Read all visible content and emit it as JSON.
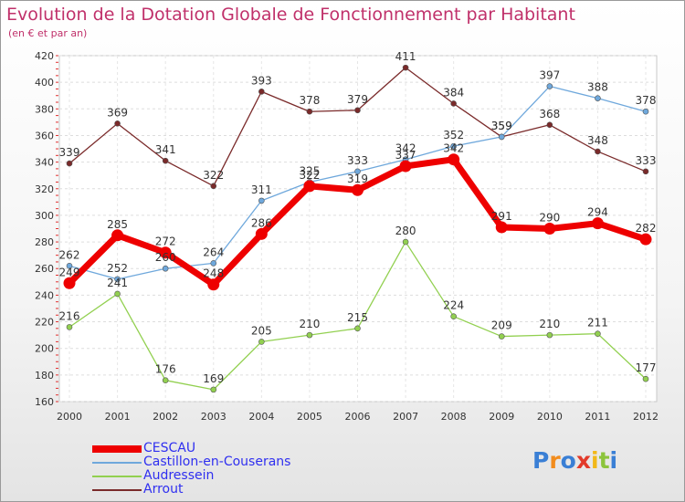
{
  "header": {
    "title": "Evolution de la Dotation Globale de Fonctionnement par Habitant",
    "subtitle": "(en € et par an)"
  },
  "logo": {
    "letters": [
      "P",
      "r",
      "o",
      "x",
      "i",
      "t",
      "i"
    ],
    "colors": [
      "#3a7fd5",
      "#f28c1c",
      "#3a7fd5",
      "#e23a2a",
      "#f2b818",
      "#8cc43c",
      "#3a7fd5"
    ]
  },
  "chart_data": {
    "type": "line",
    "x": [
      "2000",
      "2001",
      "2002",
      "2003",
      "2004",
      "2005",
      "2006",
      "2007",
      "2008",
      "2009",
      "2010",
      "2011",
      "2012"
    ],
    "ylim": [
      160,
      420
    ],
    "yticks": [
      160,
      180,
      200,
      220,
      240,
      260,
      280,
      300,
      320,
      340,
      360,
      380,
      400,
      420
    ],
    "grid": true,
    "legend_position": "bottom-left",
    "series": [
      {
        "name": "Arrout",
        "color": "#7a2a2a",
        "thick": false,
        "values": [
          339,
          369,
          341,
          322,
          393,
          378,
          379,
          411,
          384,
          359,
          368,
          348,
          333
        ]
      },
      {
        "name": "Audressein",
        "color": "#92d050",
        "thick": false,
        "values": [
          216,
          241,
          176,
          169,
          205,
          210,
          215,
          280,
          224,
          209,
          210,
          211,
          177
        ]
      },
      {
        "name": "Castillon-en-Couserans",
        "color": "#6fa8dc",
        "thick": false,
        "values": [
          262,
          252,
          260,
          264,
          311,
          325,
          333,
          342,
          352,
          359,
          397,
          388,
          378
        ]
      },
      {
        "name": "CESCAU",
        "color": "#ee0000",
        "thick": true,
        "values": [
          249,
          285,
          272,
          248,
          286,
          322,
          319,
          337,
          342,
          291,
          290,
          294,
          282
        ]
      }
    ],
    "legend": [
      "CESCAU",
      "Castillon-en-Couserans",
      "Audressein",
      "Arrout"
    ]
  }
}
